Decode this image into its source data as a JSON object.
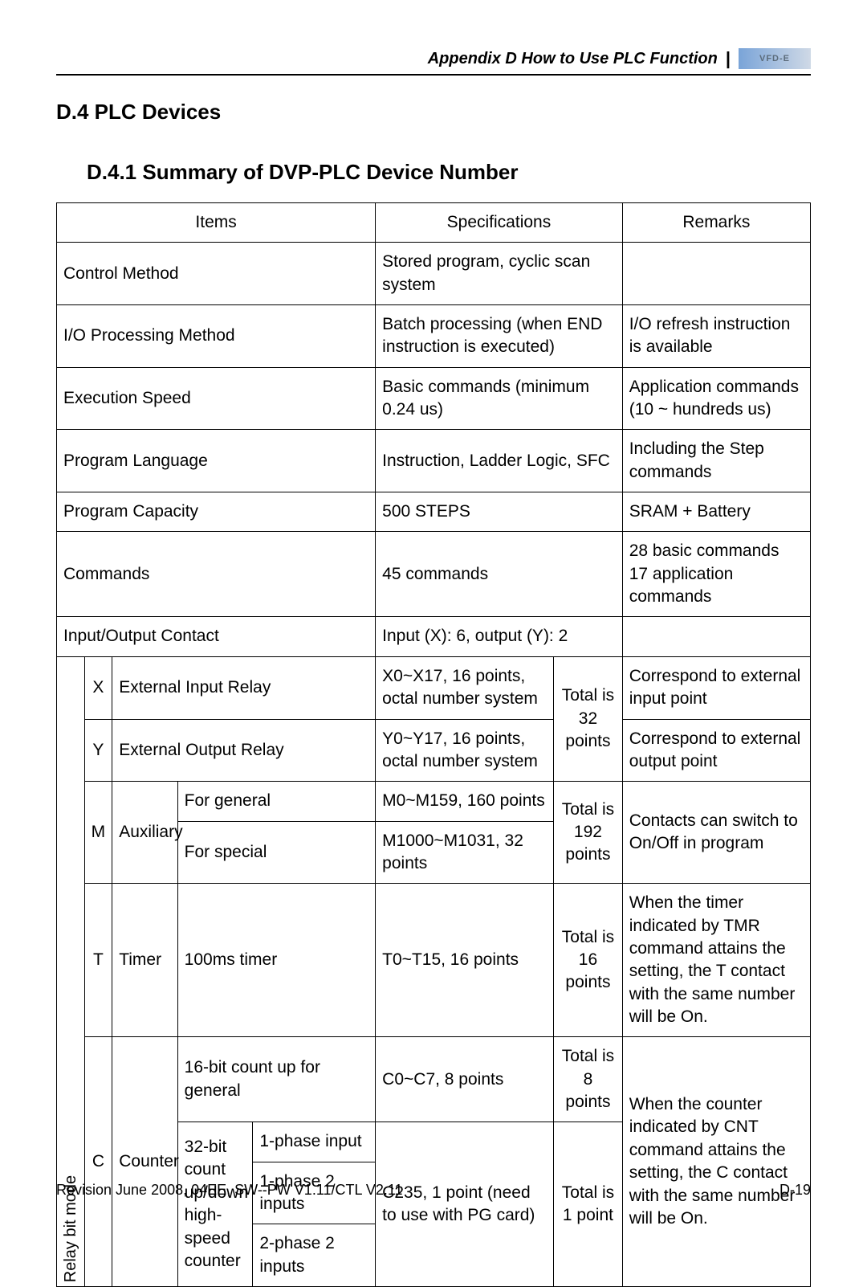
{
  "header": {
    "appendix": "Appendix D How to Use PLC Function",
    "logo_text": "VFD-E"
  },
  "headings": {
    "h1": "D.4 PLC Devices",
    "h2": "D.4.1 Summary of DVP-PLC Device Number"
  },
  "thead": {
    "items": "Items",
    "specs": "Specifications",
    "remarks": "Remarks"
  },
  "rows": {
    "control_method": {
      "item": "Control Method",
      "spec": "Stored program, cyclic scan system",
      "rem": ""
    },
    "io_processing": {
      "item": "I/O Processing Method",
      "spec": "Batch processing (when END instruction is executed)",
      "rem": "I/O refresh instruction is available"
    },
    "exec_speed": {
      "item": "Execution Speed",
      "spec": "Basic commands (minimum 0.24 us)",
      "rem": "Application commands (10 ~ hundreds us)"
    },
    "prog_lang": {
      "item": "Program Language",
      "spec": "Instruction, Ladder Logic, SFC",
      "rem": "Including the Step commands"
    },
    "prog_cap": {
      "item": "Program Capacity",
      "spec": "500 STEPS",
      "rem": "SRAM + Battery"
    },
    "commands": {
      "item": "Commands",
      "spec": "45 commands",
      "rem": "28 basic commands\n17 application commands"
    },
    "io_contact": {
      "item": "Input/Output Contact",
      "spec": "Input (X): 6, output (Y): 2",
      "rem": ""
    }
  },
  "relay": {
    "label": "Relay bit mode",
    "x": {
      "sym": "X",
      "name": "External Input Relay",
      "spec": "X0~X17, 16 points, octal number system",
      "rem": "Correspond to external input point"
    },
    "y": {
      "sym": "Y",
      "name": "External Output Relay",
      "spec": "Y0~Y17, 16 points, octal number system",
      "rem": "Correspond to external output point"
    },
    "xy_total": "Total is 32 points",
    "m": {
      "sym": "M",
      "name": "Auxiliary",
      "gen": {
        "label": "For general",
        "spec": "M0~M159, 160 points"
      },
      "spc": {
        "label": "For special",
        "spec": "M1000~M1031, 32 points"
      },
      "total": "Total is 192 points",
      "rem": "Contacts can switch to On/Off in program"
    },
    "t": {
      "sym": "T",
      "name": "Timer",
      "sub": "100ms timer",
      "spec": "T0~T15, 16 points",
      "total": "Total is 16 points",
      "rem": "When the timer indicated by TMR command attains the setting, the T contact with the same number will be On."
    },
    "c": {
      "sym": "C",
      "name": "Counter",
      "c16": {
        "label": "16-bit count up for general",
        "spec": "C0~C7, 8 points",
        "total": "Total is 8 points"
      },
      "c32": {
        "label": "32-bit count up/down high-speed counter",
        "p1": "1-phase input",
        "p2": "1-phase 2 inputs",
        "p3": "2-phase 2 inputs",
        "spec": "C235, 1 point (need to use with PG card)",
        "total": "Total is 1 point"
      },
      "rem": "When the counter indicated by CNT command attains the setting, the C contact with the same number will be On."
    }
  },
  "footer": {
    "left": "Revision June 2008, 04EE, SW--PW V1.11/CTL V2.11",
    "right": "D-19"
  }
}
